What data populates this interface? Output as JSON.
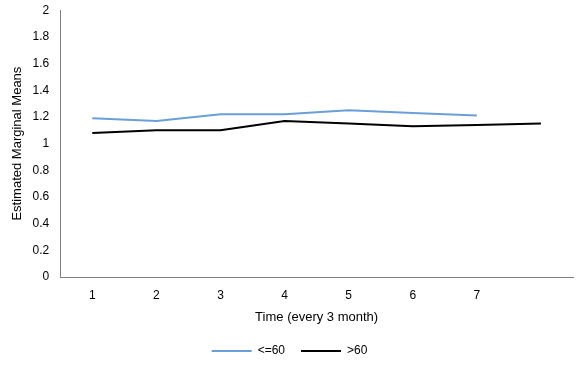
{
  "chart_data": {
    "type": "line",
    "x_label": "Time (every 3 month)",
    "y_label": "Estimated Marginal Means",
    "categories": [
      "1",
      "2",
      "3",
      "4",
      "5",
      "6",
      "7",
      null
    ],
    "series": [
      {
        "name": "<=60",
        "color": "#6a9fd8",
        "values": [
          1.19,
          1.17,
          1.22,
          1.22,
          1.25,
          1.23,
          1.21,
          null
        ]
      },
      {
        "name": ">60",
        "color": "#000000",
        "values": [
          1.08,
          1.1,
          1.1,
          1.17,
          1.15,
          1.13,
          1.14,
          1.15
        ]
      }
    ],
    "ylim": [
      0,
      2
    ],
    "yticks": [
      0,
      0.2,
      0.4,
      0.6,
      0.8,
      1,
      1.2,
      1.4,
      1.6,
      1.8,
      2
    ],
    "grid": false,
    "legend": "bottom"
  }
}
